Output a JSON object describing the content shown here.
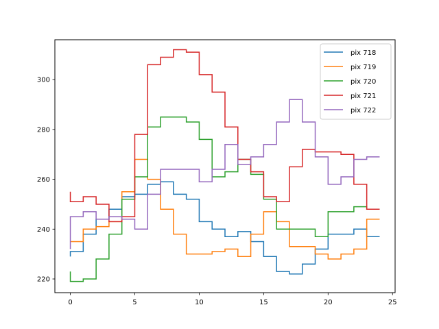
{
  "chart_data": {
    "type": "line",
    "drawstyle": "steps-pre",
    "title": "",
    "xlabel": "",
    "ylabel": "",
    "xlim": [
      -1.2,
      25.2
    ],
    "ylim": [
      214.5,
      316
    ],
    "xticks": [
      0,
      5,
      10,
      15,
      20,
      25
    ],
    "yticks": [
      220,
      240,
      260,
      280,
      300
    ],
    "grid": false,
    "legend_position": "upper right",
    "x": [
      0,
      1,
      2,
      3,
      4,
      5,
      6,
      7,
      8,
      9,
      10,
      11,
      12,
      13,
      14,
      15,
      16,
      17,
      18,
      19,
      20,
      21,
      22,
      23,
      24
    ],
    "series": [
      {
        "name": "pix 718",
        "color": "#1f77b4",
        "values": [
          229,
          231,
          238,
          244,
          248,
          253,
          254,
          258,
          259,
          254,
          252,
          243,
          240,
          237,
          239,
          235,
          229,
          223,
          222,
          226,
          232,
          238,
          238,
          240,
          237
        ]
      },
      {
        "name": "pix 719",
        "color": "#ff7f0e",
        "values": [
          235,
          235,
          240,
          241,
          243,
          255,
          268,
          260,
          248,
          238,
          230,
          230,
          231,
          232,
          229,
          238,
          247,
          243,
          233,
          233,
          230,
          228,
          230,
          232,
          244
        ]
      },
      {
        "name": "pix 720",
        "color": "#2ca02c",
        "values": [
          223,
          219,
          220,
          228,
          238,
          252,
          261,
          281,
          285,
          285,
          283,
          276,
          261,
          263,
          268,
          262,
          252,
          240,
          240,
          240,
          237,
          247,
          247,
          249,
          248
        ]
      },
      {
        "name": "pix 721",
        "color": "#d62728",
        "values": [
          255,
          251,
          253,
          250,
          243,
          245,
          278,
          306,
          309,
          312,
          311,
          302,
          295,
          281,
          268,
          263,
          253,
          251,
          265,
          272,
          271,
          271,
          270,
          258,
          248
        ]
      },
      {
        "name": "pix 722",
        "color": "#9467bd",
        "values": [
          232,
          245,
          247,
          244,
          245,
          244,
          240,
          254,
          264,
          264,
          264,
          259,
          264,
          274,
          266,
          269,
          274,
          283,
          292,
          283,
          269,
          258,
          261,
          268,
          269
        ]
      }
    ]
  }
}
